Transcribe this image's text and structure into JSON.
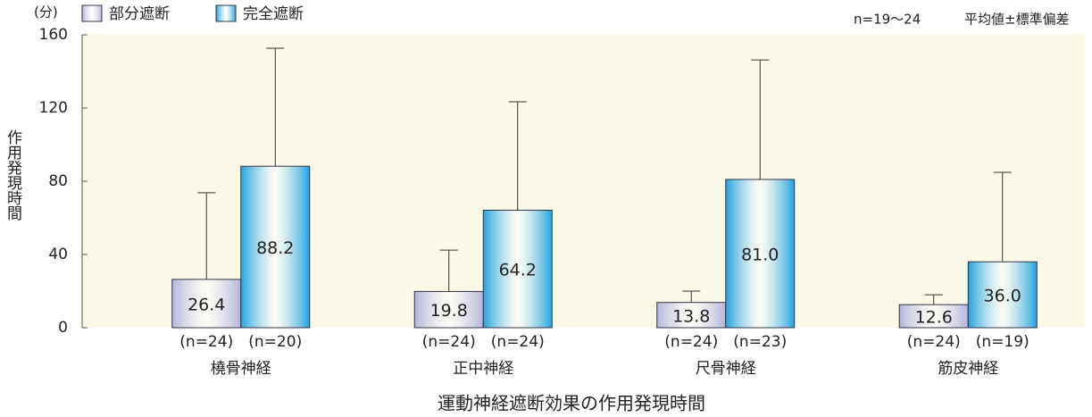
{
  "chart_data": {
    "type": "bar",
    "x_title": "運動神経遮断効果の作用発現時間",
    "y_title": "作用発現時間",
    "y_unit": "(分)",
    "notes": [
      "n=19〜24",
      "平均値±標準偏差"
    ],
    "categories": [
      "橈骨神経",
      "正中神経",
      "尺骨神経",
      "筋皮神経"
    ],
    "series": [
      {
        "name": "部分遮断",
        "color": "#b4b4dc",
        "values": [
          26.4,
          19.8,
          13.8,
          12.6
        ],
        "value_labels": [
          "26.4",
          "19.8",
          "13.8",
          "12.6"
        ],
        "errors": [
          47.3,
          22.6,
          6.2,
          5.4
        ],
        "n_labels": [
          "(n=24)",
          "(n=24)",
          "(n=24)",
          "(n=24)"
        ]
      },
      {
        "name": "完全遮断",
        "color": "#22a2de",
        "values": [
          88.2,
          64.2,
          81.0,
          36.0
        ],
        "value_labels": [
          "88.2",
          "64.2",
          "81.0",
          "36.0"
        ],
        "errors": [
          64.5,
          59.2,
          65.3,
          48.9
        ],
        "n_labels": [
          "(n=20)",
          "(n=24)",
          "(n=23)",
          "(n=19)"
        ]
      }
    ],
    "ylim": [
      0,
      160
    ],
    "yticks": [
      0,
      40,
      80,
      120,
      160
    ]
  }
}
